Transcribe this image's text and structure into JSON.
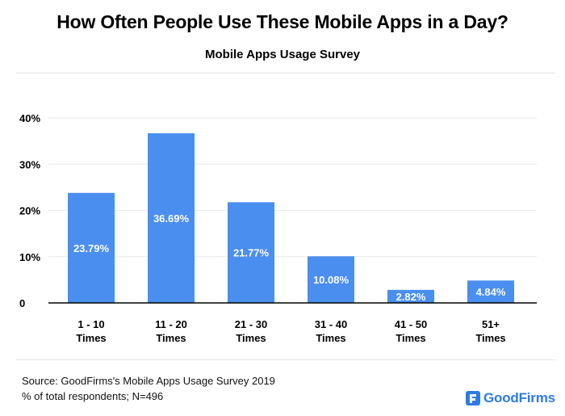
{
  "title": "How Often People Use These Mobile Apps in a Day?",
  "subtitle": "Mobile Apps Usage Survey",
  "source": {
    "line1": "Source: GoodFirms's Mobile Apps Usage Survey 2019",
    "line2": "% of total respondents; N=496"
  },
  "brand": {
    "name": "GoodFirms",
    "color": "#2d7be5"
  },
  "colors": {
    "bar": "#4a8ef0",
    "bar_label": "#ffffff",
    "axis": "#000000",
    "grid": "#e8e8e8"
  },
  "chart_data": {
    "type": "bar",
    "title": "How Often People Use These Mobile Apps in a Day?",
    "subtitle": "Mobile Apps Usage Survey",
    "xlabel": "",
    "ylabel": "",
    "categories": [
      [
        "1 - 10",
        "Times"
      ],
      [
        "11 - 20",
        "Times"
      ],
      [
        "21 - 30",
        "Times"
      ],
      [
        "31 - 40",
        "Times"
      ],
      [
        "41 - 50",
        "Times"
      ],
      [
        "51+",
        "Times"
      ]
    ],
    "values": [
      23.79,
      36.69,
      21.77,
      10.08,
      2.82,
      4.84
    ],
    "value_labels": [
      "23.79%",
      "36.69%",
      "21.77%",
      "10.08%",
      "2.82%",
      "4.84%"
    ],
    "ylim": [
      0,
      40
    ],
    "yticks": [
      0,
      10,
      20,
      30,
      40
    ],
    "ytick_labels": [
      "0",
      "10%",
      "20%",
      "30%",
      "40%"
    ],
    "grid": true
  }
}
